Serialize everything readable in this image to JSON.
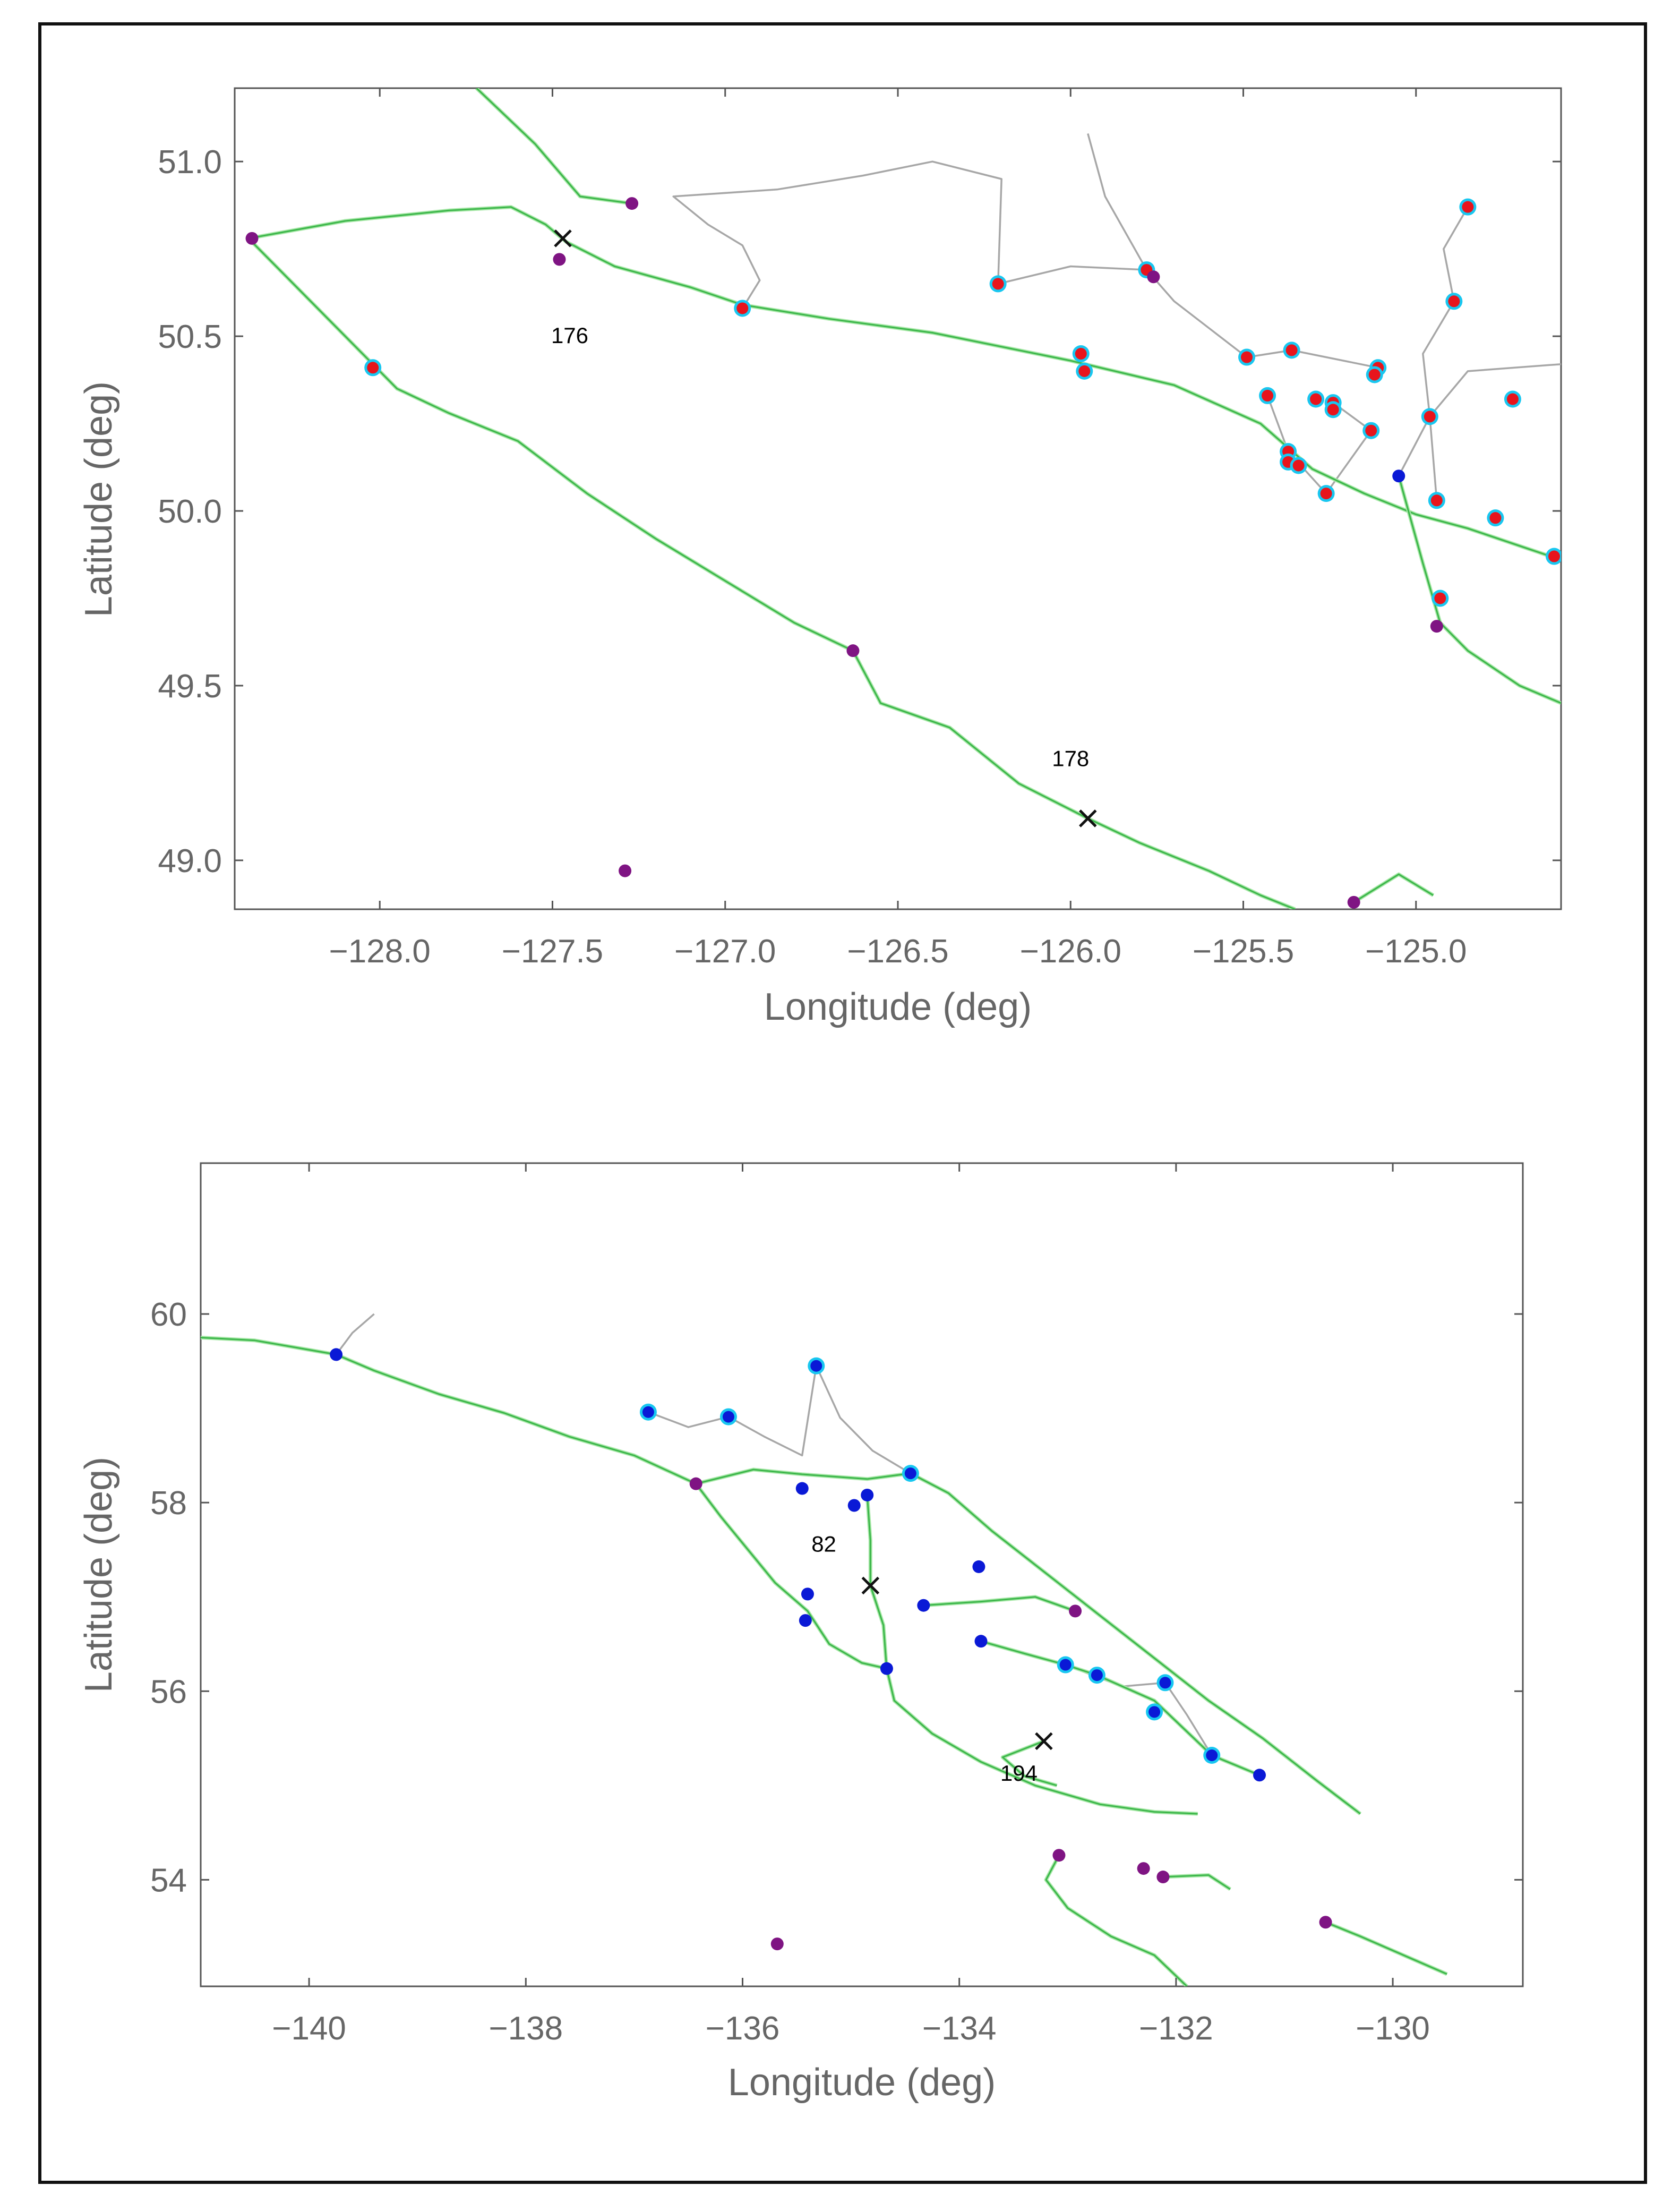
{
  "chart_data": [
    {
      "type": "scatter",
      "title": "",
      "xlabel": "Longitude (deg)",
      "ylabel": "Latitude (deg)",
      "xlim": [
        -128.42,
        -124.58
      ],
      "ylim": [
        48.86,
        51.21
      ],
      "xticks": [
        -128.0,
        -127.5,
        -127.0,
        -126.5,
        -126.0,
        -125.5,
        -125.0
      ],
      "xtick_labels": [
        "−128.0",
        "−127.5",
        "−127.0",
        "−126.5",
        "−126.0",
        "−125.5",
        "−125.0"
      ],
      "yticks": [
        49.0,
        49.5,
        50.0,
        50.5,
        51.0
      ],
      "ytick_labels": [
        "49.0",
        "49.5",
        "50.0",
        "50.5",
        "51.0"
      ],
      "colors": {
        "coast": "#3cb64a",
        "coast_light": "#a8e8a8",
        "route": "#a7a7a7",
        "red": "#e8141c",
        "purple": "#7f1483",
        "blue": "#0a19d6",
        "cyan": "#19c7f0"
      },
      "annotations": [
        {
          "text": "176",
          "x": -127.45,
          "y": 50.48
        },
        {
          "text": "178",
          "x": -126.0,
          "y": 49.27
        }
      ],
      "x_markers": [
        [
          -127.47,
          50.78
        ],
        [
          -125.95,
          49.12
        ]
      ],
      "series": [
        {
          "name": "red",
          "points": [
            [
              -128.02,
              50.41
            ],
            [
              -126.95,
              50.58
            ],
            [
              -126.21,
              50.65
            ],
            [
              -125.78,
              50.69
            ],
            [
              -125.97,
              50.45
            ],
            [
              -125.96,
              50.4
            ],
            [
              -125.49,
              50.44
            ],
            [
              -125.36,
              50.46
            ],
            [
              -125.11,
              50.41
            ],
            [
              -125.12,
              50.39
            ],
            [
              -125.29,
              50.32
            ],
            [
              -125.24,
              50.31
            ],
            [
              -125.24,
              50.29
            ],
            [
              -125.43,
              50.33
            ],
            [
              -125.13,
              50.23
            ],
            [
              -125.37,
              50.17
            ],
            [
              -125.37,
              50.14
            ],
            [
              -125.34,
              50.13
            ],
            [
              -125.26,
              50.05
            ],
            [
              -124.96,
              50.27
            ],
            [
              -124.72,
              50.32
            ],
            [
              -124.89,
              50.6
            ],
            [
              -124.85,
              50.87
            ],
            [
              -124.94,
              50.03
            ],
            [
              -124.77,
              49.98
            ],
            [
              -124.6,
              49.87
            ],
            [
              -124.93,
              49.75
            ]
          ]
        },
        {
          "name": "purple",
          "points": [
            [
              -128.37,
              50.78
            ],
            [
              -127.48,
              50.72
            ],
            [
              -127.27,
              50.88
            ],
            [
              -125.76,
              50.67
            ],
            [
              -126.63,
              49.6
            ],
            [
              -127.29,
              48.97
            ],
            [
              -124.94,
              49.67
            ],
            [
              -125.18,
              48.88
            ]
          ]
        },
        {
          "name": "blue",
          "points": [
            [
              -125.05,
              50.1
            ]
          ]
        }
      ],
      "coast_paths": [
        [
          [
            -128.38,
            50.78
          ],
          [
            -128.1,
            50.83
          ],
          [
            -127.8,
            50.86
          ],
          [
            -127.62,
            50.87
          ],
          [
            -127.52,
            50.82
          ],
          [
            -127.46,
            50.77
          ],
          [
            -127.32,
            50.7
          ],
          [
            -127.1,
            50.64
          ],
          [
            -126.95,
            50.59
          ],
          [
            -126.7,
            50.55
          ],
          [
            -126.4,
            50.51
          ],
          [
            -126.2,
            50.47
          ],
          [
            -126.0,
            50.43
          ],
          [
            -125.7,
            50.36
          ],
          [
            -125.45,
            50.25
          ],
          [
            -125.3,
            50.12
          ],
          [
            -125.15,
            50.05
          ],
          [
            -125.0,
            49.99
          ],
          [
            -124.85,
            49.95
          ],
          [
            -124.7,
            49.9
          ],
          [
            -124.58,
            49.86
          ]
        ],
        [
          [
            -128.38,
            50.78
          ],
          [
            -128.2,
            50.6
          ],
          [
            -128.05,
            50.45
          ],
          [
            -127.95,
            50.35
          ],
          [
            -127.8,
            50.28
          ],
          [
            -127.6,
            50.2
          ],
          [
            -127.4,
            50.05
          ],
          [
            -127.2,
            49.92
          ],
          [
            -127.0,
            49.8
          ],
          [
            -126.8,
            49.68
          ],
          [
            -126.63,
            49.6
          ],
          [
            -126.55,
            49.45
          ],
          [
            -126.35,
            49.38
          ],
          [
            -126.15,
            49.22
          ],
          [
            -125.95,
            49.12
          ],
          [
            -125.8,
            49.05
          ],
          [
            -125.6,
            48.97
          ],
          [
            -125.45,
            48.9
          ],
          [
            -125.35,
            48.86
          ]
        ],
        [
          [
            -125.05,
            50.1
          ],
          [
            -124.98,
            49.85
          ],
          [
            -124.93,
            49.68
          ],
          [
            -124.85,
            49.6
          ],
          [
            -124.7,
            49.5
          ],
          [
            -124.58,
            49.45
          ]
        ],
        [
          [
            -127.72,
            51.21
          ],
          [
            -127.55,
            51.05
          ],
          [
            -127.42,
            50.9
          ],
          [
            -127.27,
            50.88
          ]
        ],
        [
          [
            -125.18,
            48.88
          ],
          [
            -125.05,
            48.96
          ],
          [
            -124.95,
            48.9
          ]
        ]
      ],
      "route_paths": [
        [
          [
            -126.95,
            50.58
          ],
          [
            -126.9,
            50.66
          ],
          [
            -126.95,
            50.76
          ],
          [
            -127.05,
            50.82
          ],
          [
            -127.15,
            50.9
          ],
          [
            -126.85,
            50.92
          ],
          [
            -126.6,
            50.96
          ],
          [
            -126.4,
            51.0
          ],
          [
            -126.2,
            50.95
          ],
          [
            -126.21,
            50.65
          ]
        ],
        [
          [
            -126.21,
            50.65
          ],
          [
            -126.0,
            50.7
          ],
          [
            -125.78,
            50.69
          ],
          [
            -125.9,
            50.9
          ],
          [
            -125.95,
            51.08
          ]
        ],
        [
          [
            -125.78,
            50.69
          ],
          [
            -125.7,
            50.6
          ],
          [
            -125.49,
            50.44
          ],
          [
            -125.36,
            50.46
          ],
          [
            -125.11,
            50.41
          ]
        ],
        [
          [
            -124.85,
            50.87
          ],
          [
            -124.92,
            50.75
          ],
          [
            -124.89,
            50.6
          ],
          [
            -124.98,
            50.45
          ],
          [
            -124.96,
            50.27
          ],
          [
            -124.94,
            50.03
          ]
        ],
        [
          [
            -125.05,
            50.1
          ],
          [
            -124.96,
            50.27
          ],
          [
            -124.85,
            50.4
          ],
          [
            -124.58,
            50.42
          ]
        ],
        [
          [
            -125.43,
            50.33
          ],
          [
            -125.37,
            50.17
          ],
          [
            -125.26,
            50.05
          ],
          [
            -125.13,
            50.23
          ],
          [
            -125.24,
            50.31
          ]
        ]
      ]
    },
    {
      "type": "scatter",
      "title": "",
      "xlabel": "Longitude (deg)",
      "ylabel": "Latitude (deg)",
      "xlim": [
        -141.0,
        -128.8
      ],
      "ylim": [
        52.87,
        61.6
      ],
      "xticks": [
        -140,
        -138,
        -136,
        -134,
        -132,
        -130
      ],
      "xtick_labels": [
        "−140",
        "−138",
        "−136",
        "−134",
        "−132",
        "−130"
      ],
      "yticks": [
        54,
        56,
        58,
        60
      ],
      "ytick_labels": [
        "54",
        "56",
        "58",
        "60"
      ],
      "colors": {
        "coast": "#3cb64a",
        "coast_light": "#a8e8a8",
        "route": "#a7a7a7",
        "red": "#e8141c",
        "purple": "#7f1483",
        "blue": "#0a19d6",
        "cyan": "#19c7f0"
      },
      "annotations": [
        {
          "text": "82",
          "x": -135.25,
          "y": 57.48
        },
        {
          "text": "194",
          "x": -133.45,
          "y": 55.05
        }
      ],
      "x_markers": [
        [
          -134.82,
          57.12
        ],
        [
          -133.22,
          55.47
        ]
      ],
      "series": [
        {
          "name": "blue",
          "points": [
            [
              -139.75,
              59.57
            ],
            [
              -135.45,
              58.15
            ],
            [
              -134.85,
              58.08
            ],
            [
              -134.97,
              57.97
            ],
            [
              -133.82,
              57.32
            ],
            [
              -135.4,
              57.03
            ],
            [
              -134.33,
              56.91
            ],
            [
              -135.42,
              56.75
            ],
            [
              -133.8,
              56.53
            ],
            [
              -134.67,
              56.24
            ],
            [
              -131.23,
              55.11
            ]
          ]
        },
        {
          "name": "blue-ringed",
          "points": [
            [
              -136.87,
              58.96
            ],
            [
              -136.13,
              58.91
            ],
            [
              -135.32,
              59.45
            ],
            [
              -134.45,
              58.31
            ],
            [
              -133.02,
              56.28
            ],
            [
              -132.73,
              56.17
            ],
            [
              -132.1,
              56.09
            ],
            [
              -132.2,
              55.78
            ],
            [
              -131.67,
              55.32
            ]
          ]
        },
        {
          "name": "purple",
          "points": [
            [
              -136.43,
              58.2
            ],
            [
              -132.93,
              56.85
            ],
            [
              -133.08,
              54.26
            ],
            [
              -132.3,
              54.12
            ],
            [
              -132.12,
              54.03
            ],
            [
              -130.62,
              53.55
            ],
            [
              -135.68,
              53.32
            ]
          ]
        }
      ],
      "coast_paths": [
        [
          [
            -141.0,
            59.75
          ],
          [
            -140.5,
            59.72
          ],
          [
            -140.0,
            59.62
          ],
          [
            -139.75,
            59.57
          ],
          [
            -139.4,
            59.4
          ],
          [
            -138.8,
            59.15
          ],
          [
            -138.2,
            58.95
          ],
          [
            -137.6,
            58.7
          ],
          [
            -137.0,
            58.5
          ],
          [
            -136.43,
            58.2
          ],
          [
            -136.2,
            57.85
          ],
          [
            -135.95,
            57.5
          ],
          [
            -135.7,
            57.15
          ],
          [
            -135.4,
            56.85
          ],
          [
            -135.2,
            56.5
          ],
          [
            -134.9,
            56.3
          ],
          [
            -134.67,
            56.24
          ],
          [
            -134.6,
            55.9
          ],
          [
            -134.25,
            55.55
          ],
          [
            -133.8,
            55.25
          ],
          [
            -133.3,
            55.0
          ],
          [
            -132.7,
            54.8
          ],
          [
            -132.2,
            54.72
          ],
          [
            -131.8,
            54.7
          ]
        ],
        [
          [
            -136.43,
            58.2
          ],
          [
            -135.9,
            58.35
          ],
          [
            -135.45,
            58.3
          ],
          [
            -134.85,
            58.25
          ],
          [
            -134.45,
            58.31
          ],
          [
            -134.1,
            58.1
          ],
          [
            -133.7,
            57.7
          ],
          [
            -133.2,
            57.25
          ],
          [
            -132.7,
            56.8
          ],
          [
            -132.2,
            56.35
          ],
          [
            -131.7,
            55.9
          ],
          [
            -131.2,
            55.5
          ],
          [
            -130.7,
            55.05
          ],
          [
            -130.3,
            54.7
          ]
        ],
        [
          [
            -134.85,
            58.08
          ],
          [
            -134.82,
            57.6
          ],
          [
            -134.82,
            57.12
          ],
          [
            -134.7,
            56.7
          ],
          [
            -134.67,
            56.24
          ]
        ],
        [
          [
            -134.33,
            56.91
          ],
          [
            -133.8,
            56.95
          ],
          [
            -133.3,
            57.0
          ],
          [
            -132.93,
            56.85
          ]
        ],
        [
          [
            -133.8,
            56.53
          ],
          [
            -133.4,
            56.4
          ],
          [
            -133.02,
            56.28
          ],
          [
            -132.73,
            56.17
          ],
          [
            -132.2,
            55.9
          ],
          [
            -131.67,
            55.32
          ],
          [
            -131.23,
            55.11
          ]
        ],
        [
          [
            -133.08,
            54.26
          ],
          [
            -133.2,
            54.0
          ],
          [
            -133.0,
            53.7
          ],
          [
            -132.6,
            53.4
          ],
          [
            -132.2,
            53.2
          ],
          [
            -131.9,
            52.87
          ]
        ],
        [
          [
            -132.12,
            54.03
          ],
          [
            -131.7,
            54.05
          ],
          [
            -131.5,
            53.9
          ]
        ],
        [
          [
            -130.62,
            53.55
          ],
          [
            -130.3,
            53.4
          ],
          [
            -129.9,
            53.2
          ],
          [
            -129.5,
            53.0
          ]
        ],
        [
          [
            -133.22,
            55.47
          ],
          [
            -133.6,
            55.3
          ],
          [
            -133.4,
            55.1
          ],
          [
            -133.1,
            55.0
          ]
        ]
      ],
      "route_paths": [
        [
          [
            -139.75,
            59.57
          ],
          [
            -139.6,
            59.8
          ],
          [
            -139.4,
            60.0
          ]
        ],
        [
          [
            -136.87,
            58.96
          ],
          [
            -136.5,
            58.8
          ],
          [
            -136.13,
            58.91
          ],
          [
            -135.8,
            58.7
          ],
          [
            -135.45,
            58.5
          ],
          [
            -135.32,
            59.45
          ]
        ],
        [
          [
            -135.32,
            59.45
          ],
          [
            -135.1,
            58.9
          ],
          [
            -134.8,
            58.55
          ],
          [
            -134.45,
            58.31
          ]
        ],
        [
          [
            -133.02,
            56.28
          ],
          [
            -132.5,
            56.05
          ],
          [
            -132.1,
            56.09
          ],
          [
            -131.9,
            55.75
          ],
          [
            -131.67,
            55.32
          ]
        ]
      ]
    }
  ]
}
